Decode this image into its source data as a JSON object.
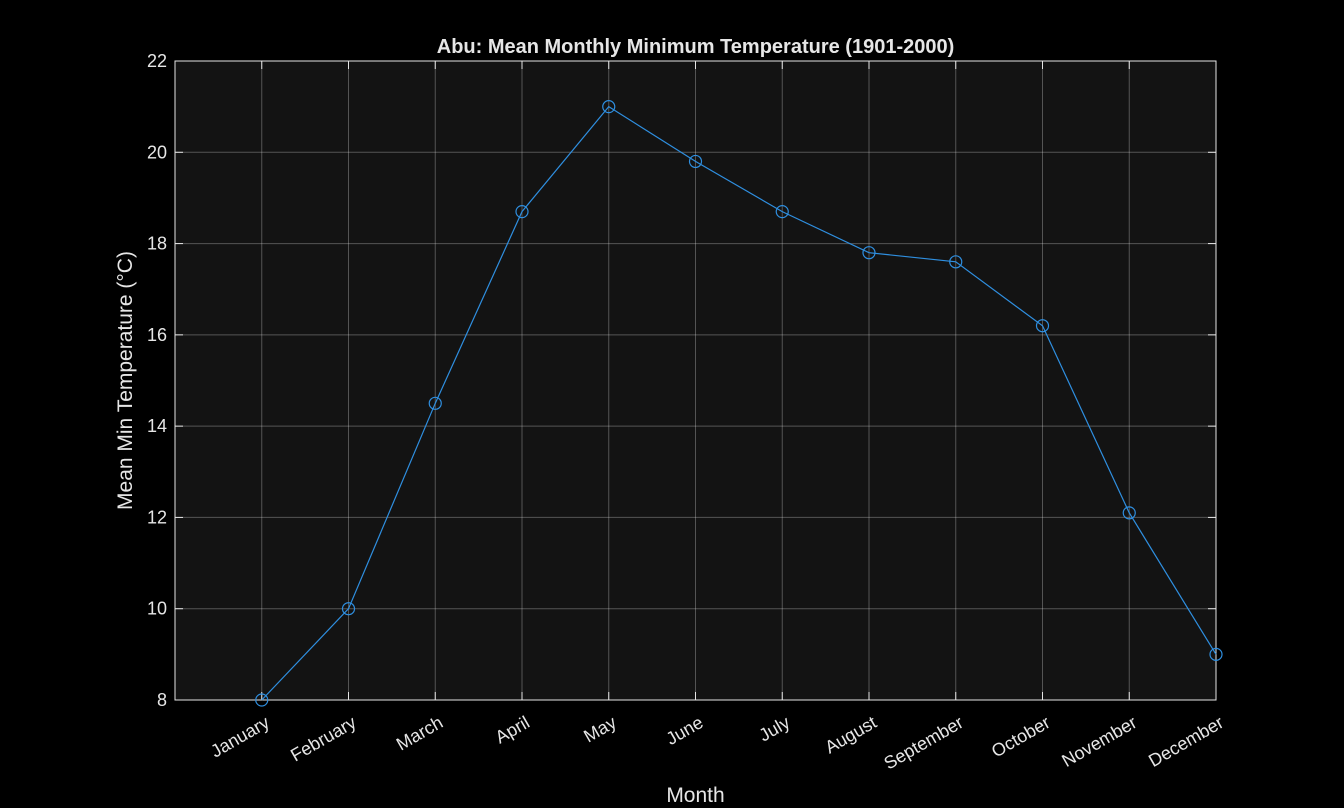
{
  "chart_data": {
    "type": "line",
    "title": "Abu: Mean Monthly Minimum Temperature (1901-2000)",
    "xlabel": "Month",
    "ylabel": "Mean Min Temperature (°C)",
    "categories": [
      "January",
      "February",
      "March",
      "April",
      "May",
      "June",
      "July",
      "August",
      "September",
      "October",
      "November",
      "December"
    ],
    "series": [
      {
        "values": [
          8.0,
          10.0,
          14.5,
          18.7,
          21.0,
          19.8,
          18.7,
          17.8,
          17.6,
          16.2,
          12.1,
          9.0
        ],
        "color": "#2f8fe0",
        "marker": "circle"
      }
    ],
    "ylim": [
      8,
      22
    ],
    "yticks": [
      8,
      10,
      12,
      14,
      16,
      18,
      20,
      22
    ],
    "grid": true,
    "background": "#000000",
    "plot_background": "#131313",
    "axis_color": "#e6e6e6"
  }
}
